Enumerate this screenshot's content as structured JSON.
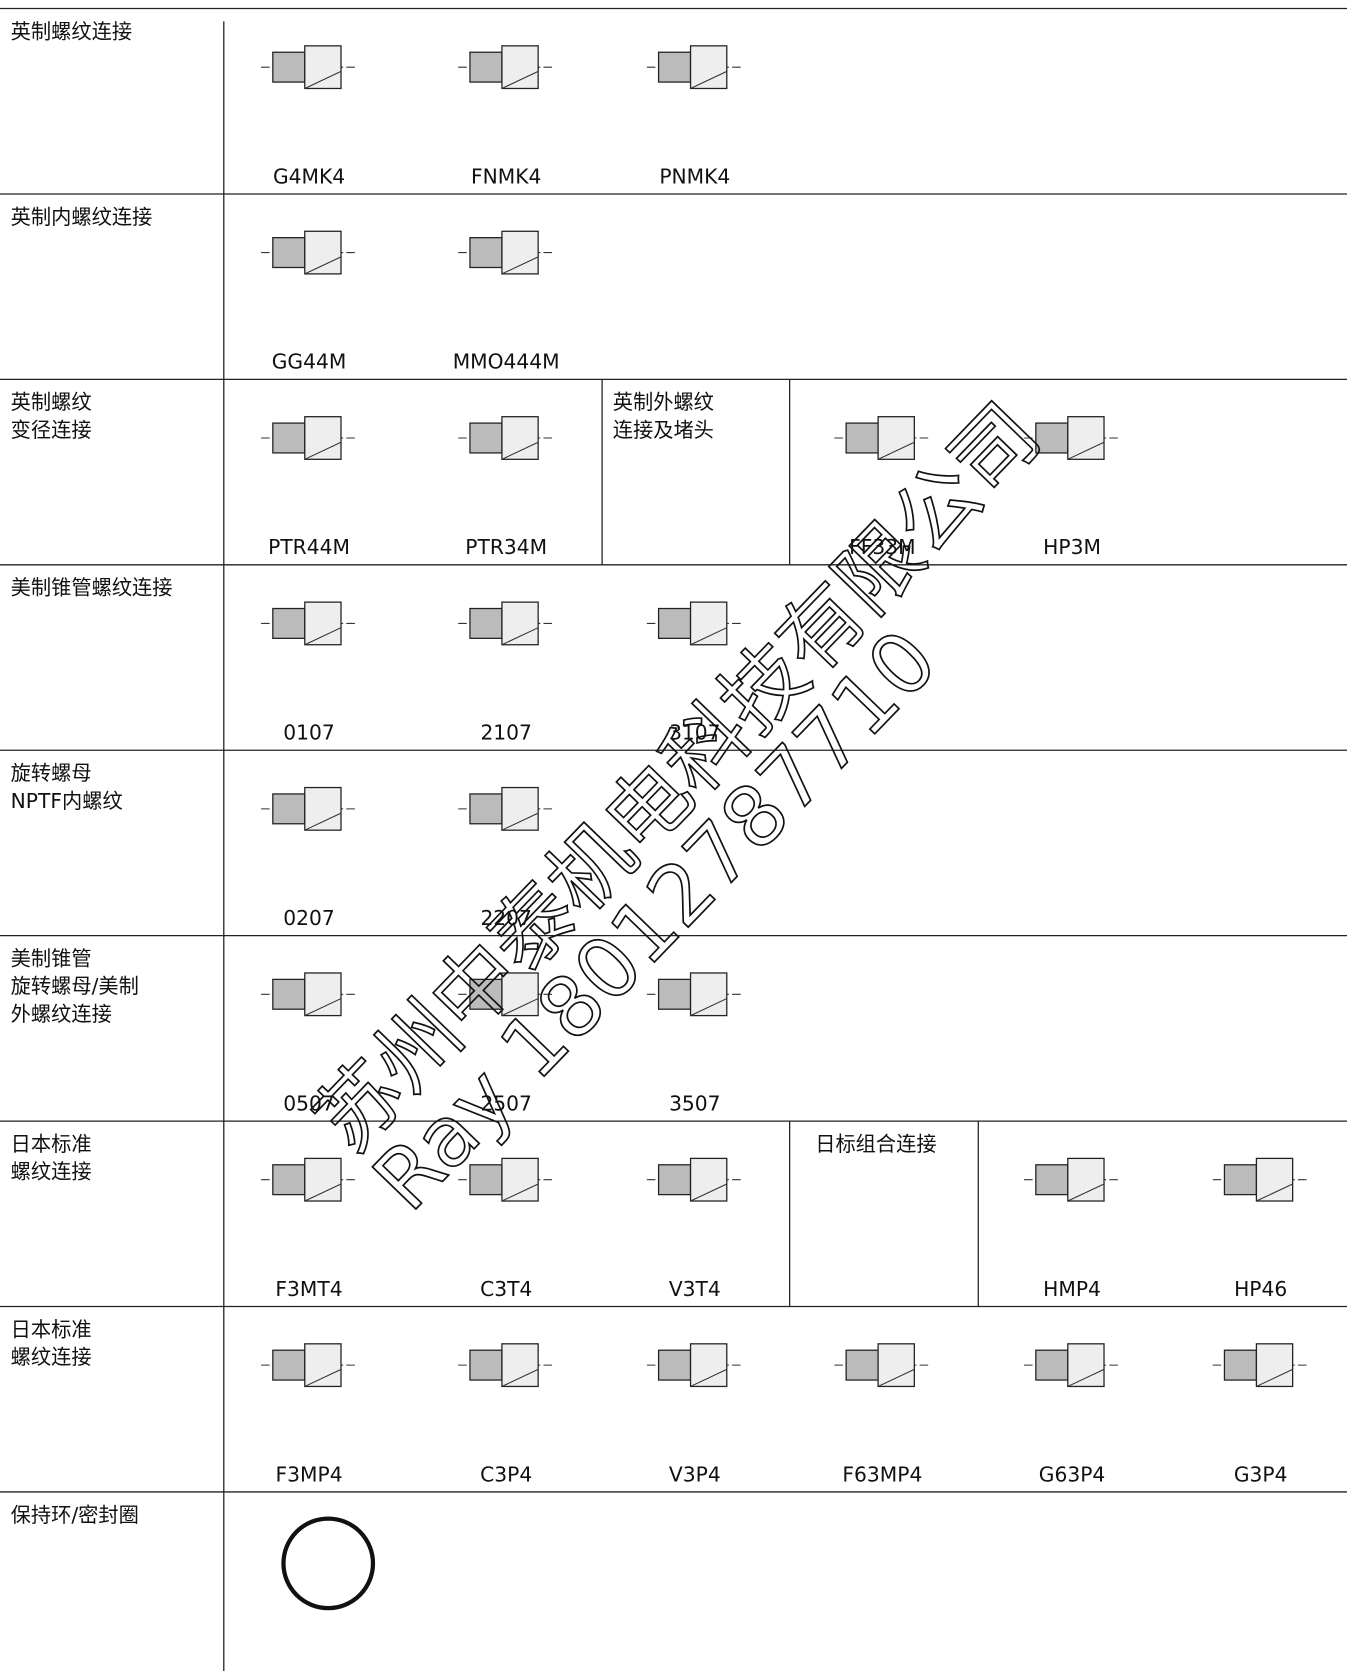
{
  "rows": [
    {
      "label": [
        "英制螺纹连接"
      ],
      "items": [
        "G4MK4",
        "FNMK4",
        "PNMK4"
      ]
    },
    {
      "label": [
        "英制内螺纹连接"
      ],
      "items": [
        "GG44M",
        "MMO444M"
      ]
    },
    {
      "label": [
        "英制螺纹",
        "变径连接"
      ],
      "items": [
        "PTR44M",
        "PTR34M"
      ],
      "sub_label": [
        "英制外螺纹",
        "连接及堵头"
      ],
      "sub_items": [
        "FF33M",
        "HP3M"
      ]
    },
    {
      "label": [
        "美制锥管螺纹连接"
      ],
      "items": [
        "0107",
        "2107",
        "3107"
      ]
    },
    {
      "label": [
        "旋转螺母",
        "NPTF内螺纹"
      ],
      "items": [
        "0207",
        "2207"
      ]
    },
    {
      "label": [
        "美制锥管",
        "旋转螺母/美制",
        "外螺纹连接"
      ],
      "items": [
        "0507",
        "2507",
        "3507"
      ]
    },
    {
      "label": [
        "日本标准",
        "螺纹连接"
      ],
      "items": [
        "F3MT4",
        "C3T4",
        "V3T4"
      ],
      "sub_label": [
        "日标组合连接"
      ],
      "sub_items": [
        "HMP4",
        "HP46"
      ]
    },
    {
      "label": [
        "日本标准",
        "螺纹连接"
      ],
      "items": [
        "F3MP4",
        "C3P4",
        "V3P4",
        "F63MP4",
        "G63P4",
        "G3P4"
      ]
    },
    {
      "label": [
        "保持环/密封圈"
      ],
      "items": []
    }
  ],
  "watermark": [
    "苏州中泰机电科技有限公司",
    "Ray 18012787710"
  ]
}
